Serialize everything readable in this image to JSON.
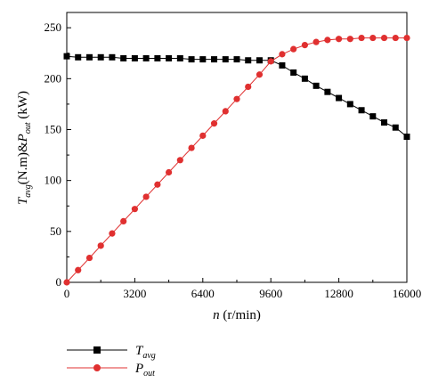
{
  "chart_data": {
    "type": "line",
    "xlabel": {
      "var": "n",
      "unit": " (r/min)"
    },
    "ylabel": {
      "t_var": "T",
      "t_sub": "avg",
      "mid": "(N.m)&",
      "p_var": "P",
      "p_sub": "out",
      "unit": " (kW)"
    },
    "xlim": [
      0,
      16000
    ],
    "ylim": [
      0,
      265
    ],
    "xticks": [
      0,
      3200,
      6400,
      9600,
      12800,
      16000
    ],
    "yticks": [
      0,
      50,
      100,
      150,
      200,
      250
    ],
    "grid": false,
    "legend_position": "bottom-left",
    "series": [
      {
        "name": {
          "var": "T",
          "sub": "avg"
        },
        "color": "#000000",
        "marker": "square",
        "x": [
          0,
          533,
          1067,
          1600,
          2133,
          2667,
          3200,
          3733,
          4267,
          4800,
          5333,
          5867,
          6400,
          6933,
          7467,
          8000,
          8533,
          9067,
          9600,
          10133,
          10667,
          11200,
          11733,
          12267,
          12800,
          13333,
          13867,
          14400,
          14933,
          15467,
          16000
        ],
        "y": [
          222,
          221,
          221,
          221,
          221,
          220,
          220,
          220,
          220,
          220,
          220,
          219,
          219,
          219,
          219,
          219,
          218,
          218,
          218,
          213,
          206,
          200,
          193,
          187,
          181,
          175,
          169,
          163,
          157,
          152,
          143
        ]
      },
      {
        "name": {
          "var": "P",
          "sub": "out"
        },
        "color": "#e03030",
        "marker": "circle",
        "x": [
          0,
          533,
          1067,
          1600,
          2133,
          2667,
          3200,
          3733,
          4267,
          4800,
          5333,
          5867,
          6400,
          6933,
          7467,
          8000,
          8533,
          9067,
          9600,
          10133,
          10667,
          11200,
          11733,
          12267,
          12800,
          13333,
          13867,
          14400,
          14933,
          15467,
          16000
        ],
        "y": [
          0,
          12,
          24,
          36,
          48,
          60,
          72,
          84,
          96,
          108,
          120,
          132,
          144,
          156,
          168,
          180,
          192,
          204,
          217,
          224,
          229,
          233,
          236,
          238,
          239,
          239,
          240,
          240,
          240,
          240,
          240
        ]
      }
    ]
  }
}
